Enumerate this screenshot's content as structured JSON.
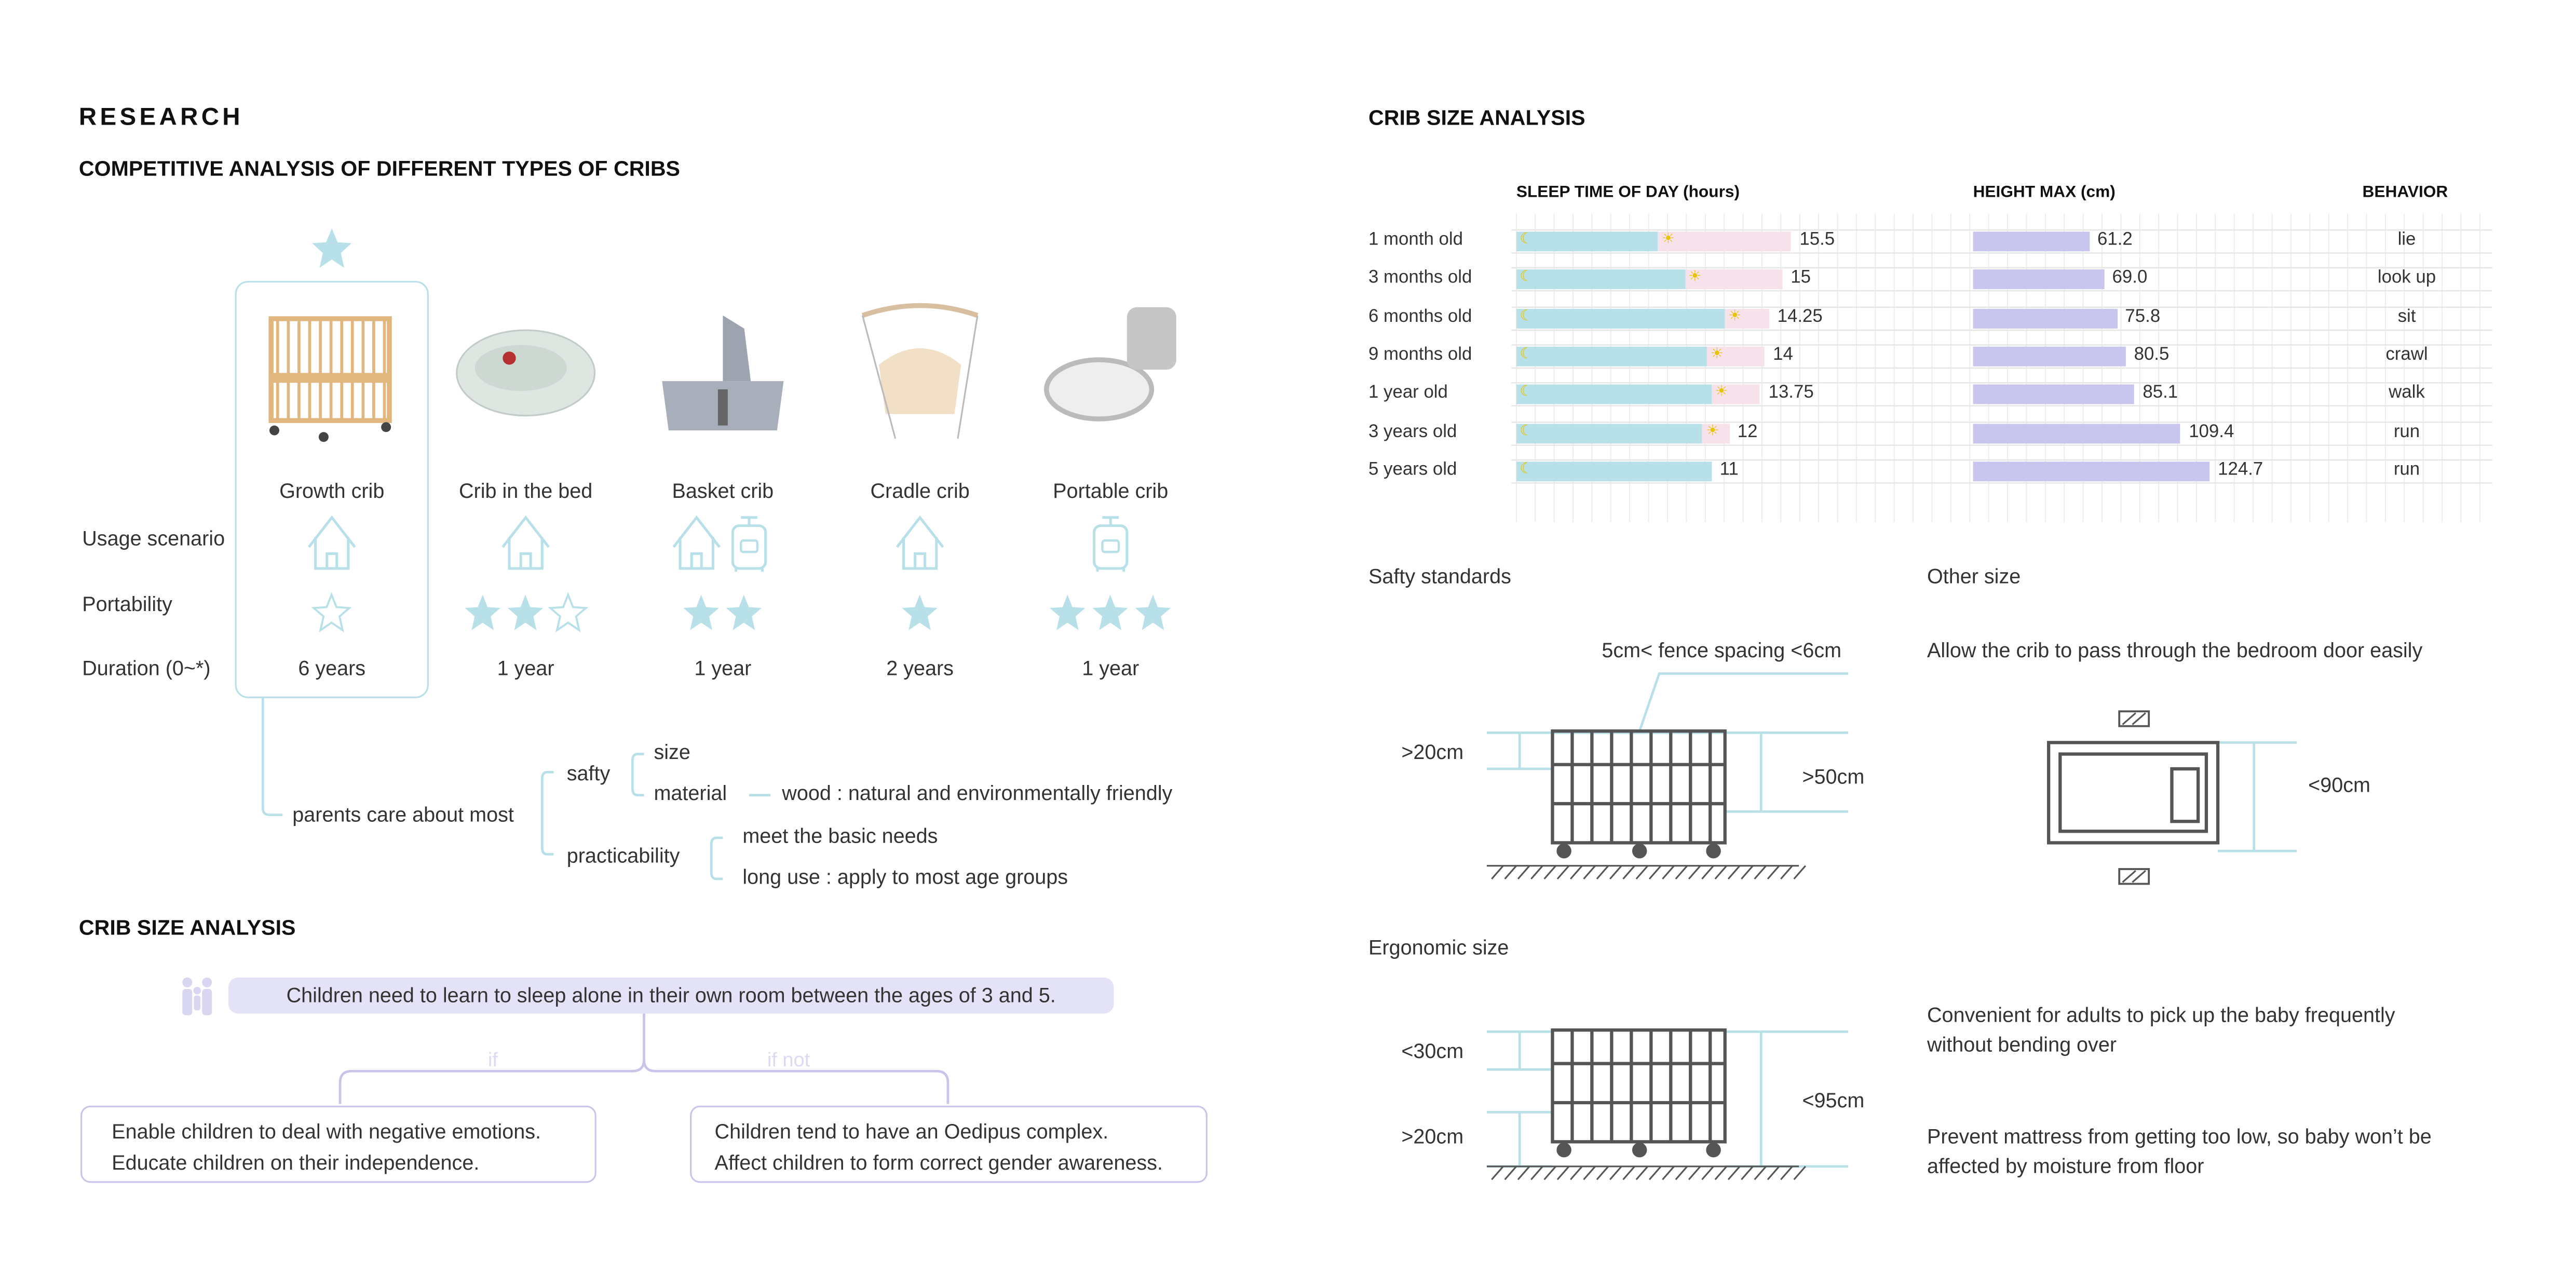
{
  "research_title": "RESEARCH",
  "competitive_title": "COMPETITIVE ANALYSIS OF DIFFERENT TYPES OF CRIBS",
  "row_labels": {
    "usage": "Usage scenario",
    "portability": "Portability",
    "duration": "Duration (0~*)"
  },
  "recommended": "Growth crib",
  "cribs": [
    {
      "name": "Growth crib",
      "usage": [
        "home-icon"
      ],
      "portability_filled": 0,
      "portability_outline": 1,
      "duration": "6 years"
    },
    {
      "name": "Crib in the bed",
      "usage": [
        "home-icon"
      ],
      "portability_filled": 2,
      "portability_outline": 1,
      "duration": "1 year"
    },
    {
      "name": "Basket crib",
      "usage": [
        "home-icon",
        "suitcase-icon"
      ],
      "portability_filled": 2,
      "portability_outline": 0,
      "duration": "1 year"
    },
    {
      "name": "Cradle crib",
      "usage": [
        "home-icon"
      ],
      "portability_filled": 1,
      "portability_outline": 0,
      "duration": "2 years"
    },
    {
      "name": "Portable crib",
      "usage": [
        "suitcase-icon"
      ],
      "portability_filled": 3,
      "portability_outline": 0,
      "duration": "1 year"
    }
  ],
  "tree": {
    "root": "parents care about most",
    "safty": "safty",
    "size": "size",
    "material": "material",
    "wood": "wood : natural and environmentally friendly",
    "practicability": "practicability",
    "basic": "meet the basic needs",
    "long_use": "long use : apply to most age groups"
  },
  "left_size_title": "CRIB SIZE ANALYSIS",
  "flow": {
    "statement": "Children need to learn to sleep alone in their own room between the ages of 3 and 5.",
    "if_label": "if",
    "if_not_label": "if not",
    "if_lines": [
      "Enable children to deal with negative emotions.",
      "Educate children on their independence."
    ],
    "if_not_lines": [
      "Children tend to have an Oedipus complex.",
      "Affect children to form correct gender awareness."
    ]
  },
  "right_title": "CRIB SIZE ANALYSIS",
  "chart_data": {
    "type": "table",
    "headers": {
      "sleep": "SLEEP TIME OF DAY (hours)",
      "height": "HEIGHT MAX (cm)",
      "behavior": "BEHAVIOR"
    },
    "rows": [
      {
        "age": "1 month old",
        "sleep_total": 15.5,
        "sleep_label": "15.5",
        "night_sleep": 8,
        "height": 61.2,
        "height_label": "61.2",
        "behavior": "lie"
      },
      {
        "age": "3 months old",
        "sleep_total": 15,
        "sleep_label": "15",
        "night_sleep": 9.5,
        "height": 69.0,
        "height_label": "69.0",
        "behavior": "look up"
      },
      {
        "age": "6 months old",
        "sleep_total": 14.25,
        "sleep_label": "14.25",
        "night_sleep": 11.75,
        "height": 75.8,
        "height_label": "75.8",
        "behavior": "sit"
      },
      {
        "age": "9 months old",
        "sleep_total": 14,
        "sleep_label": "14",
        "night_sleep": 10.75,
        "height": 80.5,
        "height_label": "80.5",
        "behavior": "crawl"
      },
      {
        "age": "1 year old",
        "sleep_total": 13.75,
        "sleep_label": "13.75",
        "night_sleep": 11,
        "height": 85.1,
        "height_label": "85.1",
        "behavior": "walk"
      },
      {
        "age": "3 years old",
        "sleep_total": 12,
        "sleep_label": "12",
        "night_sleep": 10.5,
        "height": 109.4,
        "height_label": "109.4",
        "behavior": "run"
      },
      {
        "age": "5 years old",
        "sleep_total": 11,
        "sleep_label": "11",
        "night_sleep": 11,
        "height": 124.7,
        "height_label": "124.7",
        "behavior": "run"
      }
    ],
    "colors": {
      "night": "#b8e0e8",
      "day": "#f7e1ea",
      "height": "#c8c6ee"
    }
  },
  "safety": {
    "title": "Safty standards",
    "fence": "5cm< fence spacing  <6cm",
    "low": ">20cm",
    "high": ">50cm"
  },
  "other": {
    "title": "Other size",
    "desc": "Allow the crib to pass through the bedroom door easily",
    "width": "<90cm"
  },
  "ergonomic": {
    "title": "Ergonomic size",
    "top": "<30cm",
    "bottom": ">20cm",
    "total": "<95cm",
    "note1": [
      "Convenient for adults to pick up the baby frequently",
      "without bending over"
    ],
    "note2": [
      "Prevent mattress from getting too low, so baby won’t be",
      "affected by moisture from floor"
    ]
  },
  "accent": "#b8e0e8",
  "lavender": "#c9c4ea"
}
